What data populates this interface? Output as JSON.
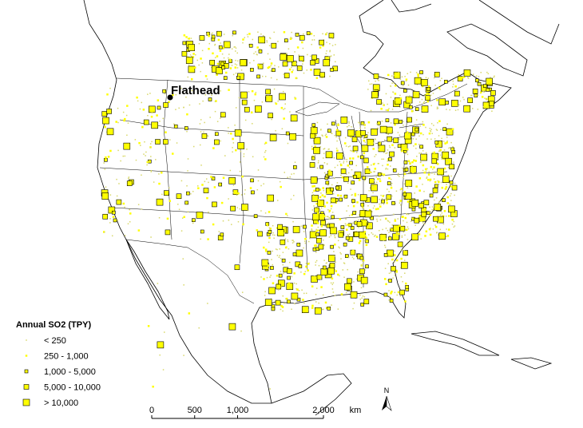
{
  "map": {
    "place_label": "Flathead",
    "legend": {
      "title": "Annual SO2 (TPY)",
      "classes": [
        "< 250",
        "250 - 1,000",
        "1,000 - 5,000",
        "5,000 - 10,000",
        "> 10,000"
      ]
    },
    "scale_bar": {
      "ticks": [
        {
          "value": 0,
          "label": "0"
        },
        {
          "value": 500,
          "label": "500"
        },
        {
          "value": 1000,
          "label": "1,000"
        },
        {
          "value": 2000,
          "label": "2,000"
        }
      ],
      "unit": "km"
    },
    "north_arrow": "N"
  }
}
